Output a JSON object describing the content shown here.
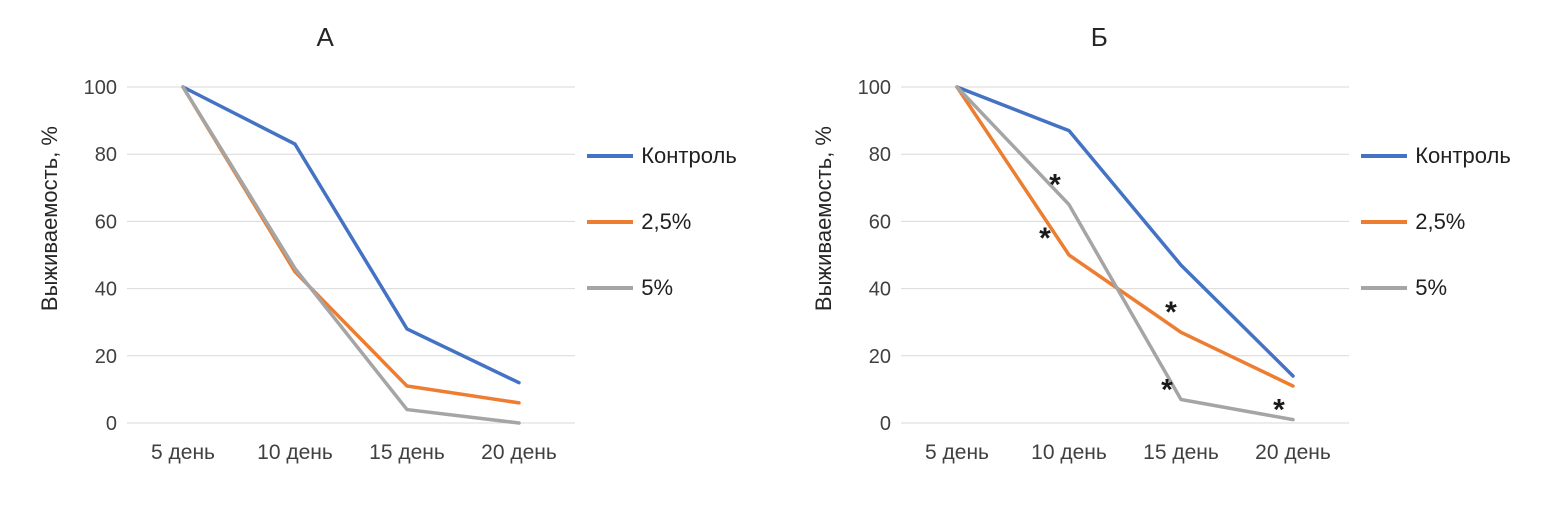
{
  "chart_data": [
    {
      "panel_title": "А",
      "type": "line",
      "categories": [
        "5 день",
        "10 день",
        "15 день",
        "20 день"
      ],
      "series": [
        {
          "name": "Контроль",
          "color": "#4472C4",
          "values": [
            100,
            83,
            28,
            12
          ]
        },
        {
          "name": "2,5%",
          "color": "#ED7D31",
          "values": [
            100,
            45,
            11,
            6
          ]
        },
        {
          "name": "5%",
          "color": "#A5A5A5",
          "values": [
            100,
            46,
            4,
            0
          ]
        }
      ],
      "xlabel": "",
      "ylabel": "Выживаемость, %",
      "ylim": [
        0,
        100
      ],
      "ytick_step": 20,
      "grid": true,
      "grid_color": "#d9d9d9",
      "legend_position": "right",
      "annotations": []
    },
    {
      "panel_title": "Б",
      "type": "line",
      "categories": [
        "5 день",
        "10 день",
        "15 день",
        "20 день"
      ],
      "series": [
        {
          "name": "Контроль",
          "color": "#4472C4",
          "values": [
            100,
            87,
            47,
            14
          ]
        },
        {
          "name": "2,5%",
          "color": "#ED7D31",
          "values": [
            100,
            50,
            27,
            11
          ]
        },
        {
          "name": "5%",
          "color": "#A5A5A5",
          "values": [
            100,
            65,
            7,
            1
          ]
        }
      ],
      "xlabel": "",
      "ylabel": "Выживаемость, %",
      "ylim": [
        0,
        100
      ],
      "ytick_step": 20,
      "grid": true,
      "grid_color": "#d9d9d9",
      "legend_position": "right",
      "annotations": [
        {
          "category_index": 1,
          "y": 71,
          "dx": -14,
          "text": "*"
        },
        {
          "category_index": 1,
          "y": 55,
          "dx": -24,
          "text": "*"
        },
        {
          "category_index": 2,
          "y": 33,
          "dx": -10,
          "text": "*"
        },
        {
          "category_index": 2,
          "y": 10,
          "dx": -14,
          "text": "*"
        },
        {
          "category_index": 3,
          "y": 4,
          "dx": -14,
          "text": "*"
        }
      ]
    }
  ]
}
